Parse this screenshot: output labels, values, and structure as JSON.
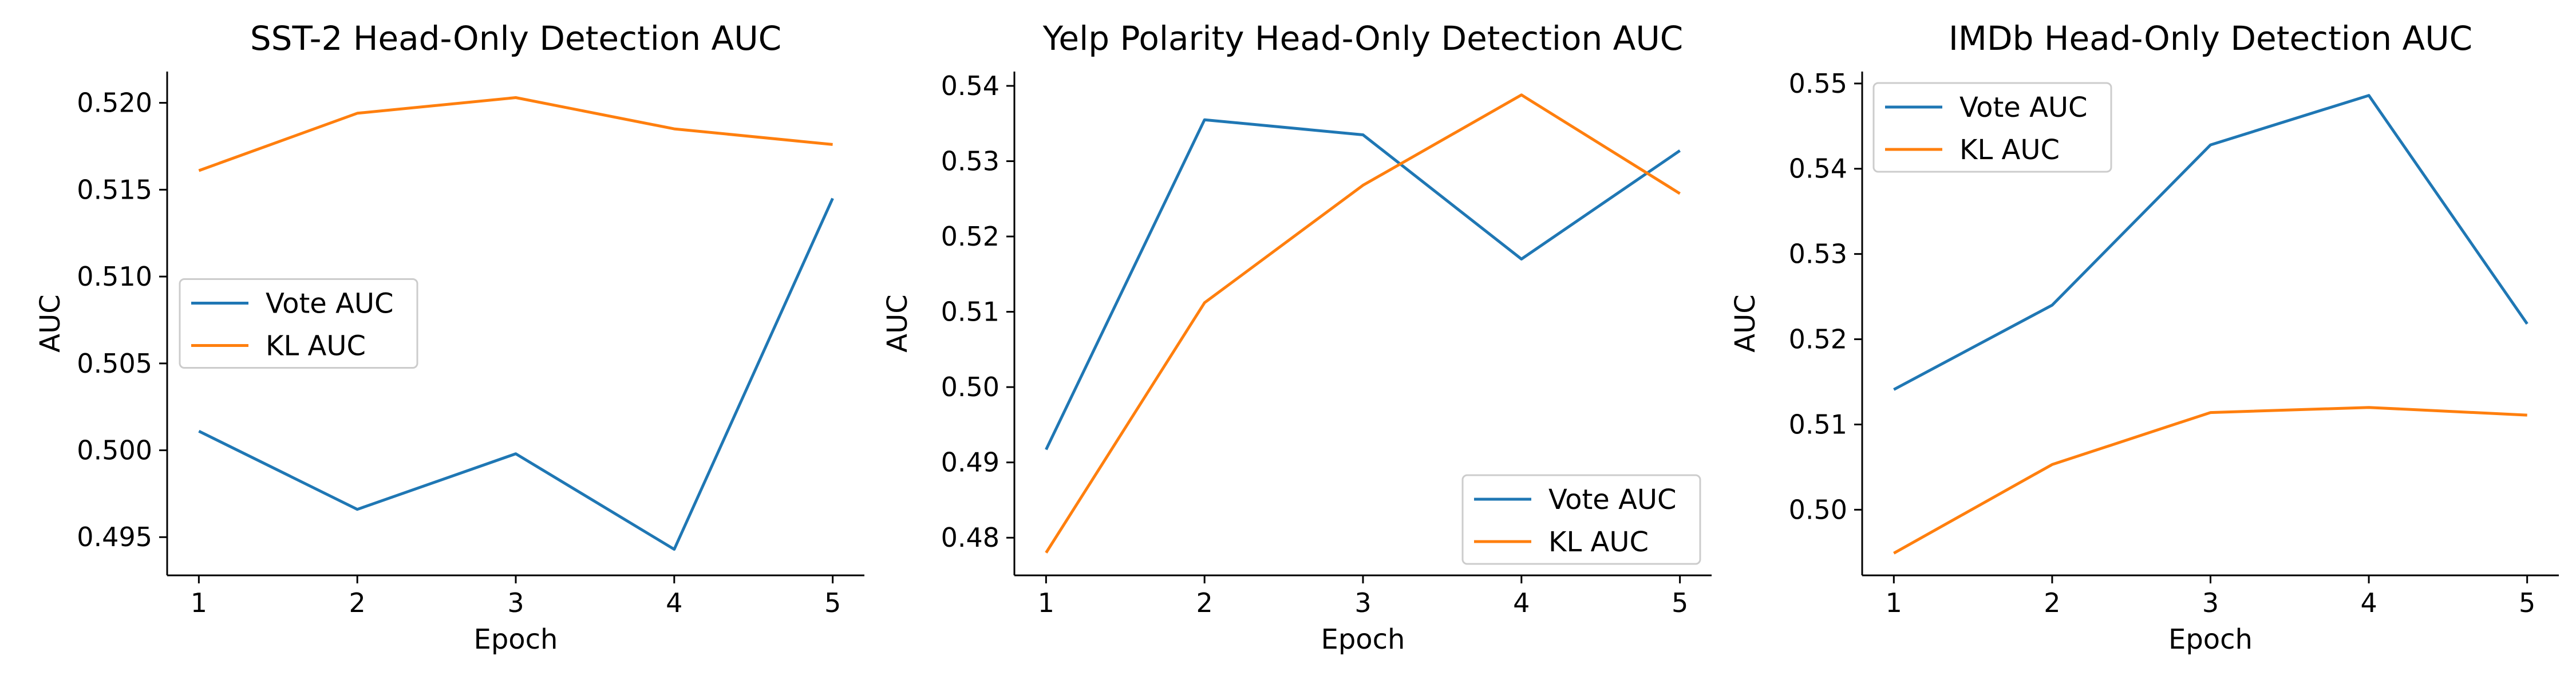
{
  "colors": {
    "vote": "#1f77b4",
    "kl": "#ff7f0e"
  },
  "chart_data": [
    {
      "type": "line",
      "title": "SST-2 Head-Only Detection AUC",
      "xlabel": "Epoch",
      "ylabel": "AUC",
      "x": [
        1,
        2,
        3,
        4,
        5
      ],
      "xticks": [
        "1",
        "2",
        "3",
        "4",
        "5"
      ],
      "xlim": [
        0.8,
        5.2
      ],
      "ylim": [
        0.4928,
        0.5218
      ],
      "yticks": [
        "0.495",
        "0.500",
        "0.505",
        "0.510",
        "0.515",
        "0.520"
      ],
      "ytick_values": [
        0.495,
        0.5,
        0.505,
        0.51,
        0.515,
        0.52
      ],
      "legend_position": "center-left",
      "grid": false,
      "series": [
        {
          "name": "Vote AUC",
          "color": "#1f77b4",
          "values": [
            0.5011,
            0.4966,
            0.4998,
            0.4943,
            0.5145
          ]
        },
        {
          "name": "KL AUC",
          "color": "#ff7f0e",
          "values": [
            0.5161,
            0.5194,
            0.5203,
            0.5185,
            0.5176
          ]
        }
      ]
    },
    {
      "type": "line",
      "title": "Yelp Polarity Head-Only Detection AUC",
      "xlabel": "Epoch",
      "ylabel": "AUC",
      "x": [
        1,
        2,
        3,
        4,
        5
      ],
      "xticks": [
        "1",
        "2",
        "3",
        "4",
        "5"
      ],
      "xlim": [
        0.8,
        5.2
      ],
      "ylim": [
        0.475,
        0.5419
      ],
      "yticks": [
        "0.48",
        "0.49",
        "0.50",
        "0.51",
        "0.52",
        "0.53",
        "0.54"
      ],
      "ytick_values": [
        0.48,
        0.49,
        0.5,
        0.51,
        0.52,
        0.53,
        0.54
      ],
      "legend_position": "lower-right",
      "grid": false,
      "series": [
        {
          "name": "Vote AUC",
          "color": "#1f77b4",
          "values": [
            0.4917,
            0.5355,
            0.5335,
            0.517,
            0.5314
          ]
        },
        {
          "name": "KL AUC",
          "color": "#ff7f0e",
          "values": [
            0.478,
            0.5112,
            0.5268,
            0.5388,
            0.5257
          ]
        }
      ]
    },
    {
      "type": "line",
      "title": "IMDb Head-Only Detection AUC",
      "xlabel": "Epoch",
      "ylabel": "AUC",
      "x": [
        1,
        2,
        3,
        4,
        5
      ],
      "xticks": [
        "1",
        "2",
        "3",
        "4",
        "5"
      ],
      "xlim": [
        0.8,
        5.2
      ],
      "ylim": [
        0.4923,
        0.5514
      ],
      "yticks": [
        "0.50",
        "0.51",
        "0.52",
        "0.53",
        "0.54",
        "0.55"
      ],
      "ytick_values": [
        0.5,
        0.51,
        0.52,
        0.53,
        0.54,
        0.55
      ],
      "legend_position": "upper-left",
      "grid": false,
      "series": [
        {
          "name": "Vote AUC",
          "color": "#1f77b4",
          "values": [
            0.5141,
            0.524,
            0.5428,
            0.5486,
            0.5218
          ]
        },
        {
          "name": "KL AUC",
          "color": "#ff7f0e",
          "values": [
            0.4949,
            0.5053,
            0.5114,
            0.512,
            0.5111
          ]
        }
      ]
    }
  ]
}
